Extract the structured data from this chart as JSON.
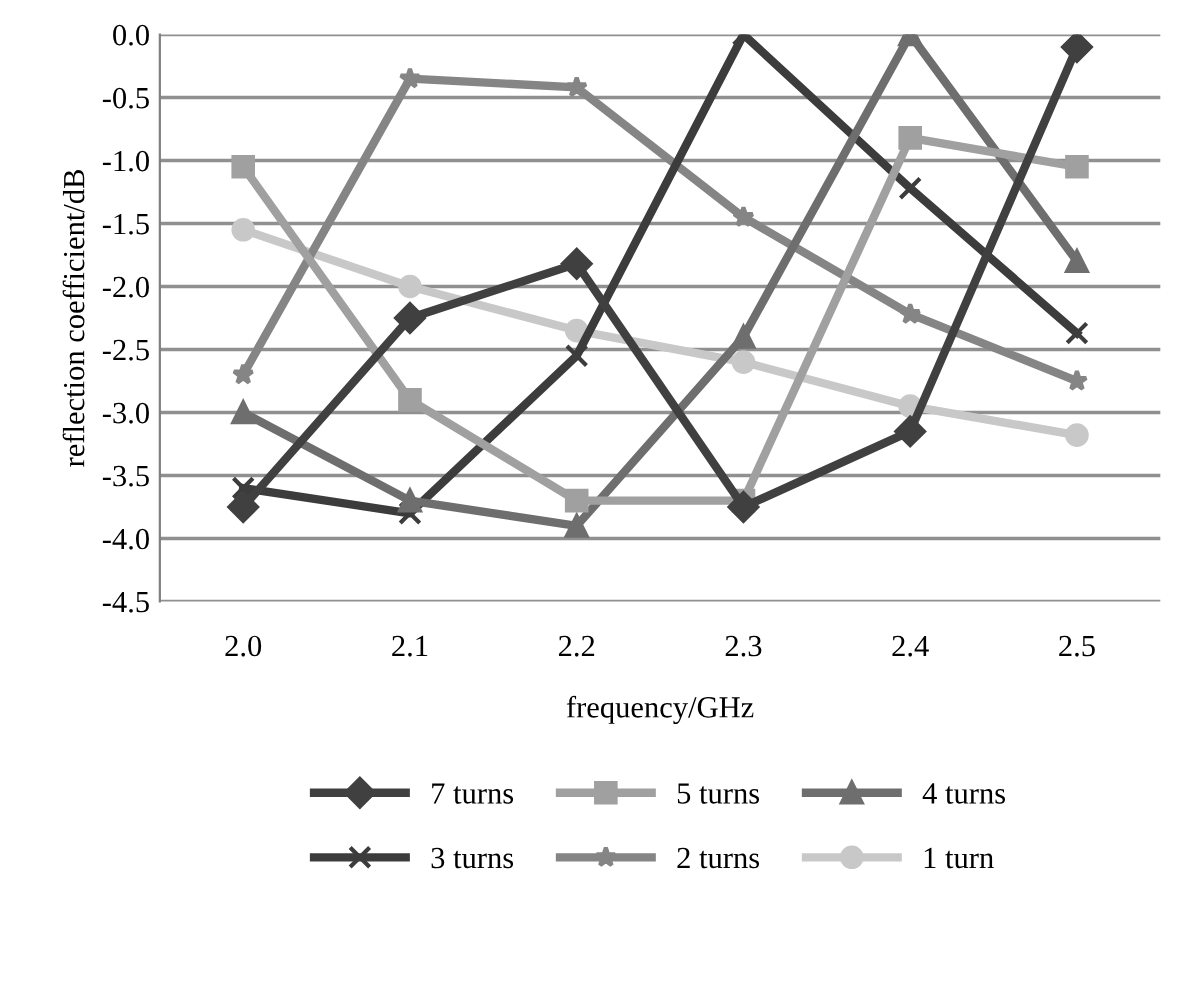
{
  "chart_data": {
    "type": "line",
    "xlabel": "frequency/GHz",
    "ylabel": "reflection coefficient/dB",
    "categories": [
      "2.0",
      "2.1",
      "2.2",
      "2.3",
      "2.4",
      "2.5"
    ],
    "ylim": [
      -4.5,
      0.0
    ],
    "yticks": [
      {
        "value": 0,
        "label": "0.0"
      },
      -0.5,
      {
        "value": -1,
        "label": "-1.0"
      },
      -1.5,
      {
        "value": -2,
        "label": "-2.0"
      },
      -2.5,
      {
        "value": -3,
        "label": "-3.0"
      },
      -3.5,
      {
        "value": -4,
        "label": "-4.0"
      },
      -4.5
    ],
    "grid": "y",
    "legend": "bottom",
    "line_style": "solid",
    "series": [
      {
        "name": "7 turns",
        "color": "#404040",
        "marker": "diamond",
        "values": [
          -3.75,
          -2.25,
          -1.82,
          -3.75,
          -3.15,
          -0.1
        ]
      },
      {
        "name": "5 turns",
        "color": "#a0a0a0",
        "marker": "square",
        "values": [
          -1.05,
          -2.9,
          -3.7,
          -3.7,
          -0.82,
          -1.05
        ]
      },
      {
        "name": "4 turns",
        "color": "#6e6e6e",
        "marker": "triangle",
        "values": [
          -3.0,
          -3.7,
          -3.9,
          -2.4,
          0.0,
          -1.8
        ]
      },
      {
        "name": "3 turns",
        "color": "#3c3c3c",
        "marker": "cross",
        "values": [
          -3.6,
          -3.8,
          -2.55,
          0.0,
          -1.22,
          -2.37
        ]
      },
      {
        "name": "2 turns",
        "color": "#858585",
        "marker": "star",
        "values": [
          -2.7,
          -0.35,
          -0.42,
          -1.45,
          -2.22,
          -2.75
        ]
      },
      {
        "name": "1 turn",
        "color": "#c8c8c8",
        "marker": "circle",
        "values": [
          -1.55,
          -2.0,
          -2.35,
          -2.6,
          -2.95,
          -3.18
        ]
      }
    ]
  }
}
